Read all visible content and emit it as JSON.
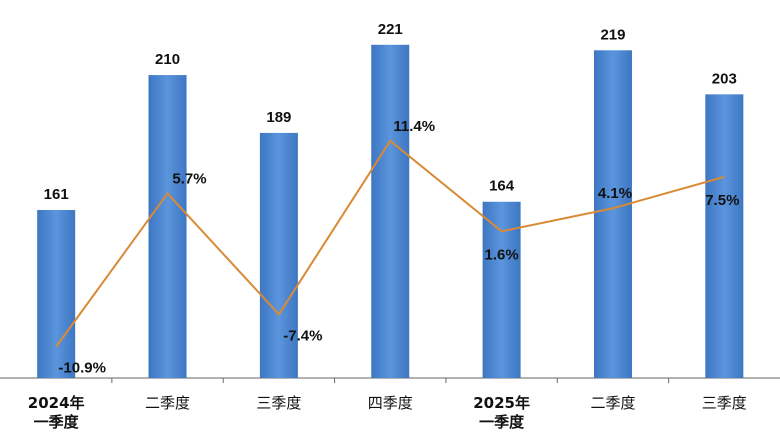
{
  "chart_data": {
    "type": "bar",
    "categories": [
      "2024年\n一季度",
      "二季度",
      "三季度",
      "四季度",
      "2025年\n一季度",
      "二季度",
      "三季度"
    ],
    "series": [
      {
        "type": "bar",
        "color": "#4a86d0",
        "values": [
          161,
          210,
          189,
          221,
          164,
          219,
          203
        ]
      },
      {
        "type": "line",
        "axis": "y2",
        "color": "#d98a35",
        "values": [
          -10.9,
          5.7,
          -7.4,
          11.4,
          1.6,
          4.1,
          7.5
        ],
        "value_labels": [
          "-10.9%",
          "5.7%",
          "-7.4%",
          "11.4%",
          "1.6%",
          "4.1%",
          "7.5%"
        ]
      }
    ],
    "ylim": [
      100,
      230
    ],
    "y2lim": [
      -14.3,
      24.5
    ]
  }
}
